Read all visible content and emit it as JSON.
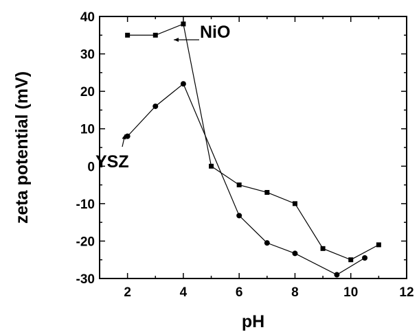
{
  "chart_data": {
    "type": "line",
    "title": "",
    "xlabel": "pH",
    "ylabel": "zeta potential (mV)",
    "xlim": [
      1,
      12
    ],
    "ylim": [
      -30,
      40
    ],
    "x_ticks": [
      "2",
      "4",
      "6",
      "8",
      "10",
      "12"
    ],
    "y_ticks": [
      "40",
      "30",
      "20",
      "10",
      "0",
      "-10",
      "-20",
      "-30"
    ],
    "grid": false,
    "series": [
      {
        "name": "NiO",
        "marker": "square",
        "x": [
          2,
          3,
          4,
          5,
          6,
          7,
          8,
          9,
          10,
          11
        ],
        "y": [
          35,
          35,
          38,
          0,
          -5,
          -7,
          -10,
          -22,
          -25,
          -21
        ]
      },
      {
        "name": "YSZ",
        "marker": "circle",
        "x": [
          2,
          3,
          4,
          6,
          7,
          8,
          9.5,
          10.5
        ],
        "y": [
          8,
          16,
          22,
          -13.2,
          -20.5,
          -23.3,
          -29,
          -24.5
        ]
      }
    ]
  }
}
